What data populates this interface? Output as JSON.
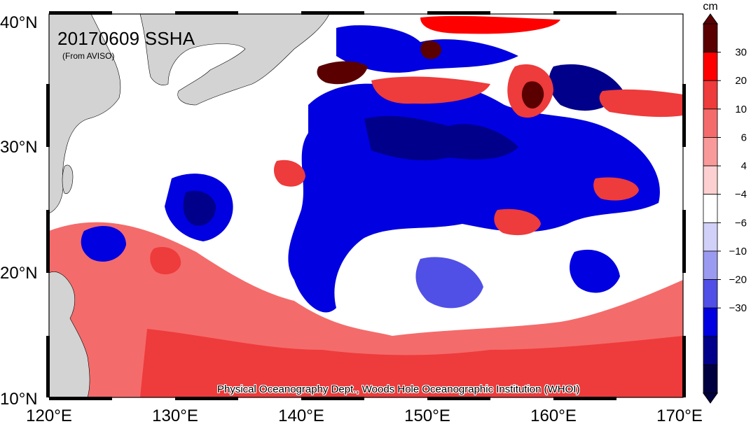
{
  "title": "20170609 SSHA",
  "subtitle": "(From AVISO)",
  "credit": "Physical Oceanography Dept., Woods Hole Oceanographic Institution (WHOI)",
  "lat_labels": [
    "40°N",
    "30°N",
    "20°N",
    "10°N"
  ],
  "lon_labels": [
    "120°E",
    "130°E",
    "140°E",
    "150°E",
    "160°E",
    "170°E"
  ],
  "colorbar": {
    "unit": "cm",
    "tick_labels": [
      "30",
      "20",
      "10",
      "6",
      "4",
      "−4",
      "−6",
      "−10",
      "−20",
      "−30"
    ],
    "colors": [
      "#5a0000",
      "#ff0000",
      "#ee3b3b",
      "#f46b6b",
      "#f99a9a",
      "#fcd0d0",
      "#ffffff",
      "#d0d0f8",
      "#9a9af0",
      "#5050e6",
      "#0000e0",
      "#00008a",
      "#000040"
    ]
  },
  "colors": {
    "land": "#d3d3d3",
    "background": "#ffffff"
  }
}
